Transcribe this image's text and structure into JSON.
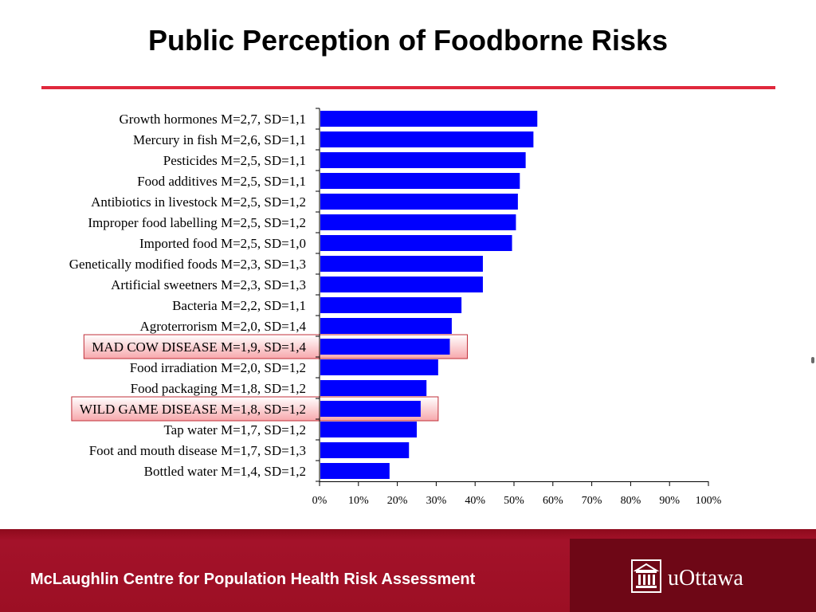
{
  "title": "Public Perception of Foodborne Risks",
  "footer": {
    "org": "McLaughlin Centre for Population Health Risk Assessment",
    "logo_text": "uOttawa",
    "logo_icon": "university-building-icon"
  },
  "colors": {
    "bar": "#0000ff",
    "highlight_border": "#c0303a",
    "title_rule": "#e0283c",
    "footer": "#9c0f24"
  },
  "chart_data": {
    "type": "bar",
    "orientation": "horizontal",
    "categories": [
      "Growth hormones M=2,7, SD=1,1",
      "Mercury in fish M=2,6, SD=1,1",
      "Pesticides M=2,5, SD=1,1",
      "Food additives M=2,5, SD=1,1",
      "Antibiotics in livestock M=2,5, SD=1,2",
      "Improper food labelling M=2,5, SD=1,2",
      "Imported food M=2,5, SD=1,0",
      "Genetically modified foods M=2,3, SD=1,3",
      "Artificial sweetners M=2,3, SD=1,3",
      "Bacteria M=2,2, SD=1,1",
      "Agroterrorism M=2,0, SD=1,4",
      "MAD COW DISEASE M=1,9, SD=1,4",
      "Food irradiation M=2,0, SD=1,2",
      "Food packaging M=1,8, SD=1,2",
      "WILD GAME DISEASE M=1,8, SD=1,2",
      "Tap water M=1,7, SD=1,2",
      "Foot and mouth disease M=1,7, SD=1,3",
      "Bottled water M=1,4, SD=1,2"
    ],
    "values": [
      56,
      55,
      53,
      51.5,
      51,
      50.5,
      49.5,
      42,
      42,
      36.5,
      34,
      33.5,
      30.5,
      27.5,
      26,
      25,
      23,
      18
    ],
    "highlighted": [
      "MAD COW DISEASE M=1,9, SD=1,4",
      "WILD GAME DISEASE M=1,8, SD=1,2"
    ],
    "xlim": [
      0,
      100
    ],
    "x_ticks": [
      "0%",
      "10%",
      "20%",
      "30%",
      "40%",
      "50%",
      "60%",
      "70%",
      "80%",
      "90%",
      "100%"
    ],
    "grid": false,
    "legend": "none"
  }
}
